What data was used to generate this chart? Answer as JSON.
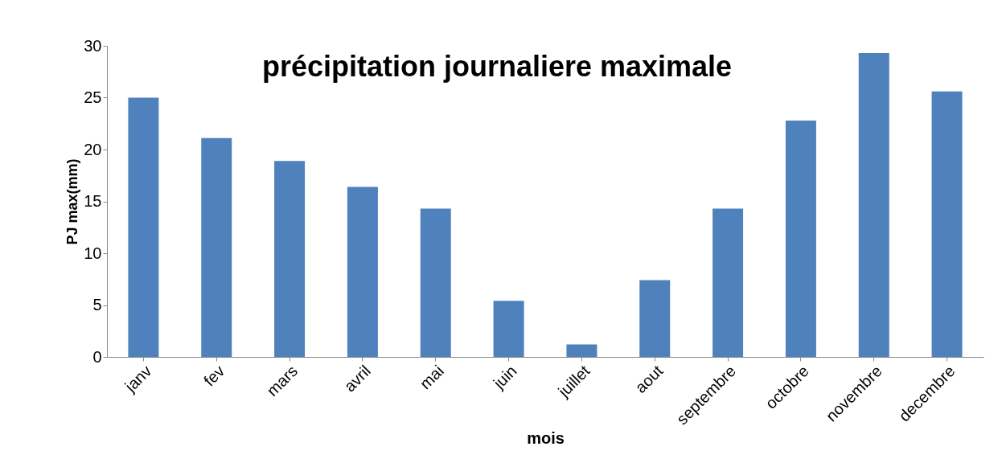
{
  "chart_data": {
    "type": "bar",
    "title": "précipitation journaliere maximale",
    "xlabel": "mois",
    "ylabel": "PJ max(mm)",
    "categories": [
      "janv",
      "fev",
      "mars",
      "avril",
      "mai",
      "juin",
      "juillet",
      "aout",
      "septembre",
      "octobre",
      "novembre",
      "decembre"
    ],
    "values": [
      25.0,
      21.1,
      18.9,
      16.4,
      14.3,
      5.4,
      1.2,
      7.4,
      14.3,
      22.8,
      29.3,
      25.6
    ],
    "color": "#4f81bd",
    "ylim": [
      0,
      30
    ],
    "yticks": [
      0,
      5,
      10,
      15,
      20,
      25,
      30
    ],
    "grid": false
  }
}
